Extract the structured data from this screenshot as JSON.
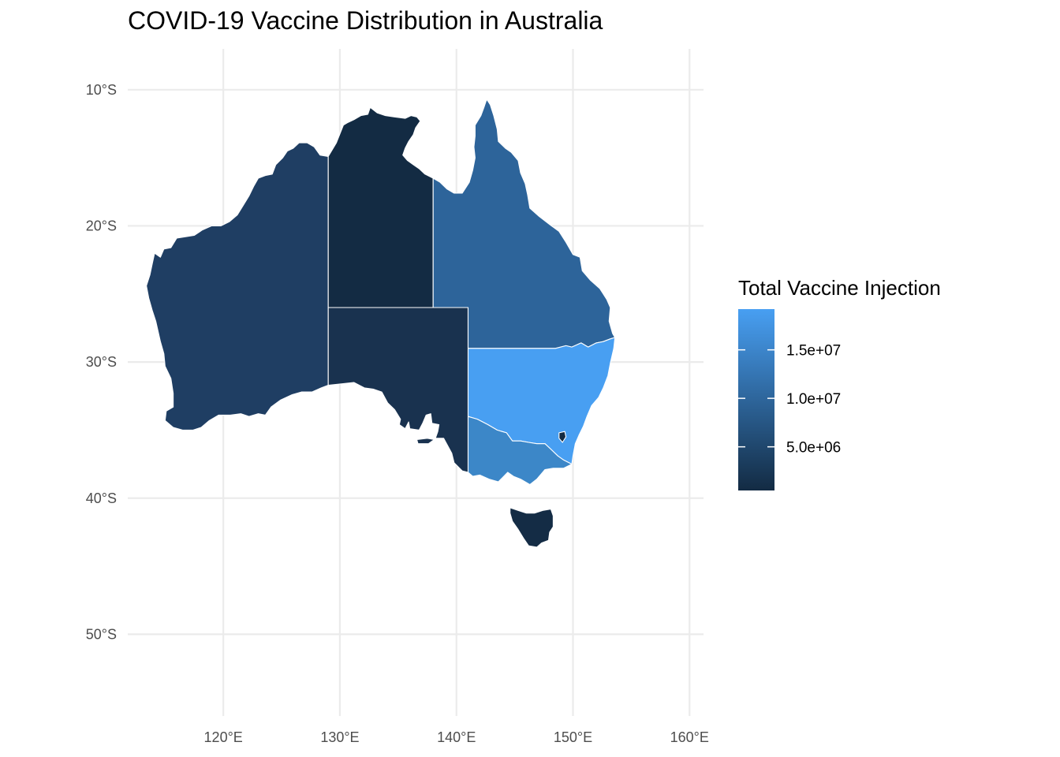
{
  "title": "COVID-19 Vaccine Distribution in Australia",
  "chart_data": {
    "type": "choropleth",
    "title": "COVID-19 Vaccine Distribution in Australia",
    "x_ticks": [
      {
        "value": 120,
        "label": "120°E"
      },
      {
        "value": 130,
        "label": "130°E"
      },
      {
        "value": 140,
        "label": "140°E"
      },
      {
        "value": 150,
        "label": "150°E"
      },
      {
        "value": 160,
        "label": "160°E"
      }
    ],
    "y_ticks": [
      {
        "value": -10,
        "label": "10°S"
      },
      {
        "value": -20,
        "label": "20°S"
      },
      {
        "value": -30,
        "label": "30°S"
      },
      {
        "value": -40,
        "label": "40°S"
      },
      {
        "value": -50,
        "label": "50°S"
      }
    ],
    "xlim": [
      111.8,
      161.2
    ],
    "ylim": [
      -56.0,
      -7.0
    ],
    "grid": true,
    "legend": {
      "title": "Total Vaccine Injection",
      "placement": "right",
      "range": [
        500000,
        19200000
      ],
      "low_color": "#132B43",
      "high_color": "#489FF2",
      "ticks": [
        {
          "value": 5000000,
          "label": "5.0e+06"
        },
        {
          "value": 10000000,
          "label": "1.0e+07"
        },
        {
          "value": 15000000,
          "label": "1.5e+07"
        }
      ]
    },
    "regions": [
      {
        "id": "wa",
        "value": 7000000,
        "color": "#1F3E63",
        "coords": [
          [
            129,
            -14.9
          ],
          [
            128.3,
            -14.8
          ],
          [
            127.8,
            -14.2
          ],
          [
            127.2,
            -13.9
          ],
          [
            126.5,
            -13.9
          ],
          [
            126.0,
            -14.3
          ],
          [
            125.5,
            -14.5
          ],
          [
            125.1,
            -15.0
          ],
          [
            124.5,
            -15.5
          ],
          [
            124.2,
            -16.2
          ],
          [
            123.6,
            -16.3
          ],
          [
            123.0,
            -16.5
          ],
          [
            122.6,
            -17.1
          ],
          [
            122.2,
            -17.8
          ],
          [
            121.7,
            -18.5
          ],
          [
            121.2,
            -19.2
          ],
          [
            120.5,
            -19.7
          ],
          [
            119.8,
            -20.0
          ],
          [
            119.0,
            -20.0
          ],
          [
            118.2,
            -20.3
          ],
          [
            117.5,
            -20.7
          ],
          [
            116.7,
            -20.8
          ],
          [
            116.0,
            -20.9
          ],
          [
            115.5,
            -21.6
          ],
          [
            114.9,
            -21.7
          ],
          [
            114.6,
            -22.3
          ],
          [
            114.1,
            -22.0
          ],
          [
            113.9,
            -22.8
          ],
          [
            113.7,
            -23.6
          ],
          [
            113.4,
            -24.4
          ],
          [
            113.6,
            -25.3
          ],
          [
            113.9,
            -26.2
          ],
          [
            114.2,
            -27.0
          ],
          [
            114.6,
            -28.5
          ],
          [
            114.9,
            -29.4
          ],
          [
            115.0,
            -30.3
          ],
          [
            115.5,
            -31.2
          ],
          [
            115.7,
            -32.3
          ],
          [
            115.7,
            -33.3
          ],
          [
            115.1,
            -33.6
          ],
          [
            115.0,
            -34.3
          ],
          [
            115.7,
            -34.8
          ],
          [
            116.5,
            -35.0
          ],
          [
            117.4,
            -35.0
          ],
          [
            118.1,
            -34.8
          ],
          [
            118.8,
            -34.3
          ],
          [
            119.6,
            -33.9
          ],
          [
            120.6,
            -33.9
          ],
          [
            121.5,
            -33.8
          ],
          [
            122.2,
            -34.0
          ],
          [
            123.0,
            -33.8
          ],
          [
            123.6,
            -33.9
          ],
          [
            124.1,
            -33.3
          ],
          [
            124.9,
            -32.8
          ],
          [
            125.9,
            -32.4
          ],
          [
            126.7,
            -32.2
          ],
          [
            127.6,
            -32.2
          ],
          [
            128.4,
            -31.9
          ],
          [
            129,
            -31.7
          ]
        ]
      },
      {
        "id": "nt",
        "value": 500000,
        "color": "#132B43",
        "coords": [
          [
            129,
            -14.9
          ],
          [
            129.7,
            -13.9
          ],
          [
            130.3,
            -12.6
          ],
          [
            130.7,
            -12.4
          ],
          [
            131.2,
            -12.2
          ],
          [
            131.8,
            -11.9
          ],
          [
            132.4,
            -11.8
          ],
          [
            132.6,
            -11.3
          ],
          [
            133.2,
            -11.7
          ],
          [
            133.9,
            -11.9
          ],
          [
            134.7,
            -12.0
          ],
          [
            135.6,
            -12.1
          ],
          [
            136.1,
            -11.9
          ],
          [
            136.6,
            -12.0
          ],
          [
            136.9,
            -12.3
          ],
          [
            136.5,
            -12.8
          ],
          [
            136.3,
            -13.3
          ],
          [
            135.9,
            -13.8
          ],
          [
            135.6,
            -14.3
          ],
          [
            135.4,
            -14.8
          ],
          [
            135.8,
            -15.2
          ],
          [
            136.3,
            -15.5
          ],
          [
            136.8,
            -15.8
          ],
          [
            137.3,
            -16.2
          ],
          [
            138,
            -16.5
          ],
          [
            138,
            -26
          ],
          [
            129,
            -26
          ]
        ]
      },
      {
        "id": "sa",
        "value": 2500000,
        "color": "#19324F",
        "coords": [
          [
            129,
            -26
          ],
          [
            141,
            -26
          ],
          [
            141,
            -38.1
          ],
          [
            140.5,
            -38.0
          ],
          [
            139.8,
            -37.4
          ],
          [
            139.6,
            -36.7
          ],
          [
            138.9,
            -35.6
          ],
          [
            138.2,
            -35.6
          ],
          [
            138.4,
            -35.1
          ],
          [
            138.5,
            -34.6
          ],
          [
            137.9,
            -34.5
          ],
          [
            137.8,
            -33.8
          ],
          [
            137.4,
            -33.9
          ],
          [
            137.1,
            -34.5
          ],
          [
            136.8,
            -35.0
          ],
          [
            136.0,
            -34.9
          ],
          [
            135.9,
            -34.4
          ],
          [
            135.6,
            -34.9
          ],
          [
            135.1,
            -34.6
          ],
          [
            135.2,
            -34.2
          ],
          [
            134.7,
            -33.5
          ],
          [
            134.1,
            -33.0
          ],
          [
            133.6,
            -32.2
          ],
          [
            132.9,
            -32.0
          ],
          [
            132.1,
            -31.9
          ],
          [
            131.2,
            -31.5
          ],
          [
            130.2,
            -31.6
          ],
          [
            129,
            -31.7
          ]
        ]
      },
      {
        "id": "ki",
        "value": 2500000,
        "color": "#19324F",
        "coords": [
          [
            136.6,
            -35.7
          ],
          [
            137.5,
            -35.6
          ],
          [
            138.1,
            -35.7
          ],
          [
            137.6,
            -36.0
          ],
          [
            136.7,
            -36.0
          ]
        ]
      },
      {
        "id": "qld",
        "value": 10000000,
        "color": "#2D649A",
        "coords": [
          [
            138,
            -16.5
          ],
          [
            138.6,
            -16.8
          ],
          [
            139.2,
            -17.3
          ],
          [
            139.8,
            -17.6
          ],
          [
            140.5,
            -17.6
          ],
          [
            141.1,
            -16.8
          ],
          [
            141.4,
            -15.9
          ],
          [
            141.6,
            -15.0
          ],
          [
            141.5,
            -14.2
          ],
          [
            141.6,
            -13.4
          ],
          [
            141.6,
            -12.6
          ],
          [
            142.1,
            -11.9
          ],
          [
            142.4,
            -11.2
          ],
          [
            142.6,
            -10.7
          ],
          [
            142.9,
            -11.1
          ],
          [
            143.2,
            -11.9
          ],
          [
            143.5,
            -12.9
          ],
          [
            143.6,
            -13.8
          ],
          [
            144.2,
            -14.3
          ],
          [
            144.7,
            -14.6
          ],
          [
            145.3,
            -15.2
          ],
          [
            145.5,
            -16.1
          ],
          [
            145.9,
            -16.9
          ],
          [
            146.1,
            -17.7
          ],
          [
            146.3,
            -18.7
          ],
          [
            147.1,
            -19.3
          ],
          [
            148.0,
            -19.9
          ],
          [
            148.8,
            -20.4
          ],
          [
            149.4,
            -21.2
          ],
          [
            150.0,
            -22.1
          ],
          [
            150.6,
            -22.3
          ],
          [
            150.8,
            -23.3
          ],
          [
            151.5,
            -24.0
          ],
          [
            152.3,
            -24.6
          ],
          [
            152.9,
            -25.4
          ],
          [
            153.2,
            -26.0
          ],
          [
            153.1,
            -27.0
          ],
          [
            153.4,
            -27.9
          ],
          [
            153.6,
            -28.2
          ],
          [
            153.2,
            -28.3
          ],
          [
            152.6,
            -28.5
          ],
          [
            152.0,
            -28.6
          ],
          [
            151.3,
            -28.9
          ],
          [
            150.7,
            -28.6
          ],
          [
            149.9,
            -28.9
          ],
          [
            149.4,
            -28.8
          ],
          [
            148.5,
            -29.0
          ],
          [
            141,
            -29
          ],
          [
            141,
            -26
          ],
          [
            138,
            -26
          ]
        ]
      },
      {
        "id": "nsw",
        "value": 19200000,
        "color": "#489FF2",
        "coords": [
          [
            141,
            -29
          ],
          [
            148.5,
            -29.0
          ],
          [
            149.4,
            -28.8
          ],
          [
            149.9,
            -28.9
          ],
          [
            150.7,
            -28.6
          ],
          [
            151.3,
            -28.9
          ],
          [
            152.0,
            -28.6
          ],
          [
            152.6,
            -28.5
          ],
          [
            153.2,
            -28.3
          ],
          [
            153.6,
            -28.2
          ],
          [
            153.5,
            -29.0
          ],
          [
            153.2,
            -30.1
          ],
          [
            153.0,
            -31.0
          ],
          [
            152.6,
            -31.9
          ],
          [
            152.2,
            -32.6
          ],
          [
            151.6,
            -33.2
          ],
          [
            151.2,
            -34.0
          ],
          [
            150.9,
            -34.7
          ],
          [
            150.5,
            -35.4
          ],
          [
            150.2,
            -36.0
          ],
          [
            150.0,
            -36.9
          ],
          [
            149.9,
            -37.5
          ],
          [
            149.2,
            -37.2
          ],
          [
            148.7,
            -36.9
          ],
          [
            148.1,
            -36.4
          ],
          [
            147.6,
            -36.0
          ],
          [
            146.9,
            -36.0
          ],
          [
            146.2,
            -35.9
          ],
          [
            145.5,
            -35.8
          ],
          [
            144.8,
            -35.8
          ],
          [
            144.3,
            -35.2
          ],
          [
            143.5,
            -35.0
          ],
          [
            142.7,
            -34.6
          ],
          [
            141.8,
            -34.2
          ],
          [
            141,
            -34.0
          ]
        ]
      },
      {
        "id": "vic",
        "value": 15000000,
        "color": "#3C87C8",
        "coords": [
          [
            141,
            -34.0
          ],
          [
            141.8,
            -34.2
          ],
          [
            142.7,
            -34.6
          ],
          [
            143.5,
            -35.0
          ],
          [
            144.3,
            -35.2
          ],
          [
            144.8,
            -35.8
          ],
          [
            145.5,
            -35.8
          ],
          [
            146.2,
            -35.9
          ],
          [
            146.9,
            -36.0
          ],
          [
            147.6,
            -36.0
          ],
          [
            148.1,
            -36.4
          ],
          [
            148.7,
            -36.9
          ],
          [
            149.2,
            -37.2
          ],
          [
            149.9,
            -37.5
          ],
          [
            149.2,
            -37.8
          ],
          [
            148.3,
            -37.8
          ],
          [
            147.6,
            -37.9
          ],
          [
            146.9,
            -38.6
          ],
          [
            146.3,
            -39.0
          ],
          [
            145.5,
            -38.6
          ],
          [
            144.9,
            -38.4
          ],
          [
            144.4,
            -38.1
          ],
          [
            143.6,
            -38.8
          ],
          [
            142.8,
            -38.6
          ],
          [
            142.0,
            -38.3
          ],
          [
            141.4,
            -38.4
          ],
          [
            141,
            -38.1
          ]
        ]
      },
      {
        "id": "tas",
        "value": 600000,
        "color": "#142C45",
        "coords": [
          [
            144.6,
            -40.7
          ],
          [
            145.3,
            -40.9
          ],
          [
            146.0,
            -41.1
          ],
          [
            146.7,
            -41.1
          ],
          [
            147.4,
            -40.9
          ],
          [
            148.1,
            -40.8
          ],
          [
            148.3,
            -41.3
          ],
          [
            148.3,
            -42.1
          ],
          [
            148.0,
            -42.5
          ],
          [
            147.9,
            -43.1
          ],
          [
            147.3,
            -43.3
          ],
          [
            146.9,
            -43.6
          ],
          [
            146.2,
            -43.5
          ],
          [
            145.8,
            -43.0
          ],
          [
            145.3,
            -42.3
          ],
          [
            144.8,
            -41.7
          ],
          [
            144.6,
            -41.1
          ]
        ]
      },
      {
        "id": "act",
        "value": 500000,
        "color": "#132B43",
        "coords": [
          [
            148.8,
            -35.2
          ],
          [
            149.3,
            -35.1
          ],
          [
            149.4,
            -35.5
          ],
          [
            149.1,
            -35.9
          ],
          [
            148.8,
            -35.6
          ]
        ]
      }
    ]
  }
}
